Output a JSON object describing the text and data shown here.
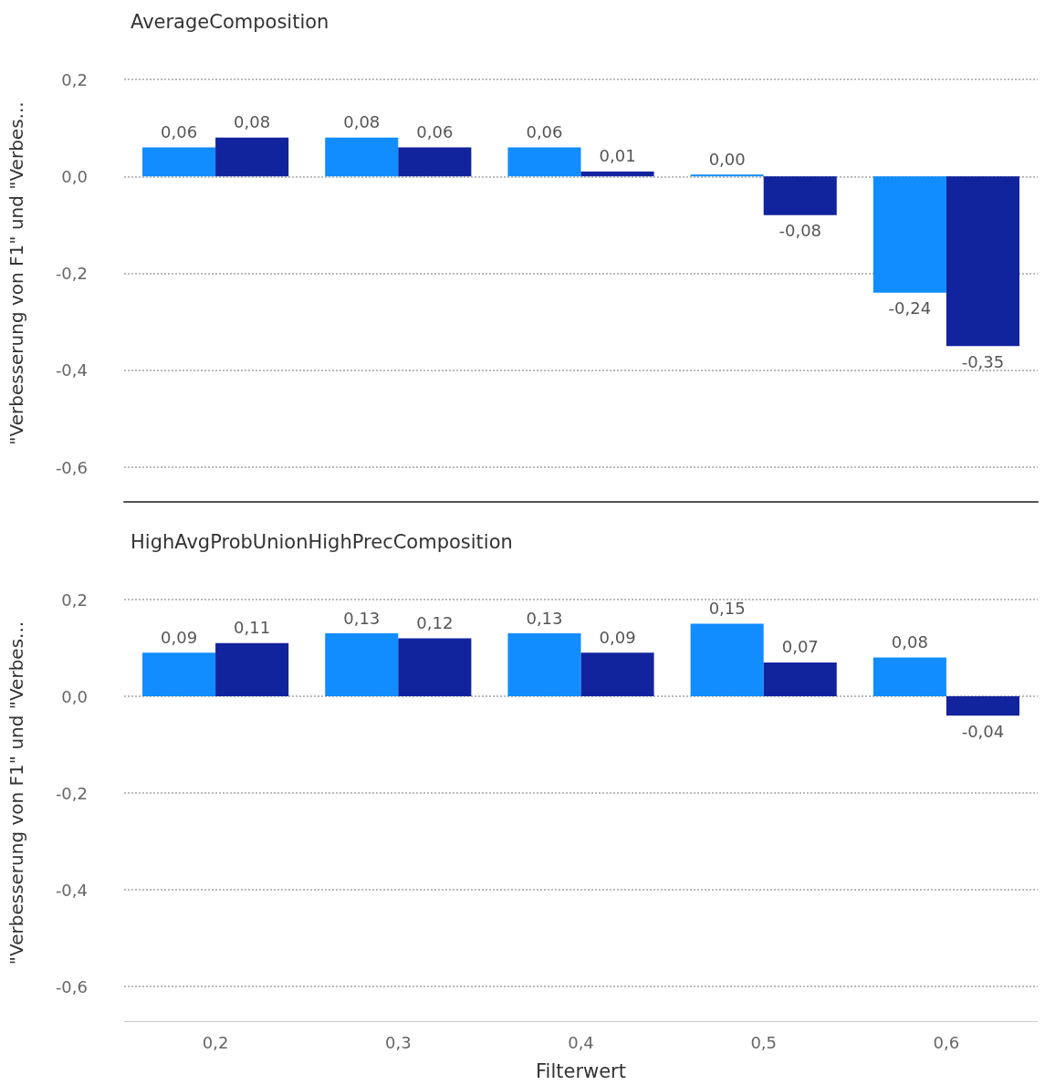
{
  "chart_data": [
    {
      "type": "bar",
      "title": "AverageComposition",
      "ylabel": "\"Verbesserung von F1\" und \"Verbes...",
      "categories": [
        "0,2",
        "0,3",
        "0,4",
        "0,5",
        "0,6"
      ],
      "series": [
        {
          "color": "#118dff",
          "values": [
            0.06,
            0.08,
            0.06,
            0.004,
            -0.24
          ],
          "value_labels": [
            "0,06",
            "0,08",
            "0,06",
            "0,00",
            "-0,24"
          ]
        },
        {
          "color": "#12239e",
          "values": [
            0.08,
            0.06,
            0.01,
            -0.08,
            -0.35
          ],
          "value_labels": [
            "0,08",
            "0,06",
            "0,01",
            "-0,08",
            "-0,35"
          ]
        }
      ],
      "ylim": [
        -0.6,
        0.2
      ],
      "yticks": [
        {
          "value": -0.6,
          "label": "-0,6"
        },
        {
          "value": -0.4,
          "label": "-0,4"
        },
        {
          "value": -0.2,
          "label": "-0,2"
        },
        {
          "value": 0,
          "label": "0,0"
        },
        {
          "value": 0.2,
          "label": "0,2"
        }
      ],
      "grid": "y",
      "tick_labels": "y"
    },
    {
      "type": "bar",
      "title": "HighAvgProbUnionHighPrecComposition",
      "ylabel": "\"Verbesserung von F1\" und \"Verbes...",
      "xlabel": "Filterwert",
      "categories": [
        "0,2",
        "0,3",
        "0,4",
        "0,5",
        "0,6"
      ],
      "series": [
        {
          "color": "#118dff",
          "values": [
            0.09,
            0.13,
            0.13,
            0.15,
            0.08
          ],
          "value_labels": [
            "0,09",
            "0,13",
            "0,13",
            "0,15",
            "0,08"
          ]
        },
        {
          "color": "#12239e",
          "values": [
            0.11,
            0.12,
            0.09,
            0.07,
            -0.04
          ],
          "value_labels": [
            "0,11",
            "0,12",
            "0,09",
            "0,07",
            "-0,04"
          ]
        }
      ],
      "ylim": [
        -0.6,
        0.2
      ],
      "yticks": [
        {
          "value": -0.6,
          "label": "-0,6"
        },
        {
          "value": -0.4,
          "label": "-0,4"
        },
        {
          "value": -0.2,
          "label": "-0,2"
        },
        {
          "value": 0,
          "label": "0,0"
        },
        {
          "value": 0.2,
          "label": "0,2"
        }
      ],
      "grid": "y"
    }
  ]
}
